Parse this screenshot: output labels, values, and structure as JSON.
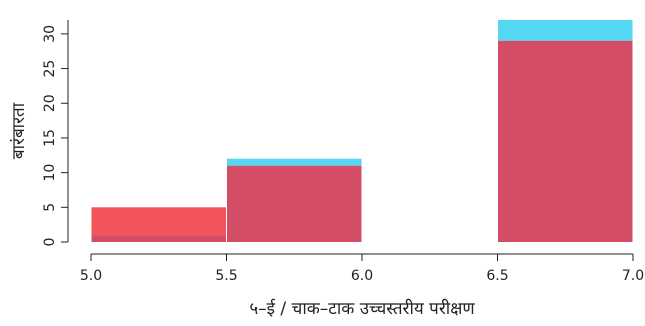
{
  "chart_data": {
    "type": "bar",
    "subtype": "overlapping-histogram",
    "xlabel": "५–ई / चाक–टाक उच्चस्तरीय परीक्षण",
    "ylabel": "बारंबारता",
    "xlim": [
      5.0,
      7.0
    ],
    "ylim": [
      0,
      32
    ],
    "x_ticks": [
      "5.0",
      "5.5",
      "6.0",
      "6.5",
      "7.0"
    ],
    "y_ticks": [
      "0",
      "5",
      "10",
      "15",
      "20",
      "25",
      "30"
    ],
    "bins": [
      [
        5.0,
        5.5
      ],
      [
        5.5,
        6.0
      ],
      [
        6.0,
        6.5
      ],
      [
        6.5,
        7.0
      ]
    ],
    "series": [
      {
        "color": "#55D6F2",
        "values": [
          1,
          12,
          0,
          32
        ]
      },
      {
        "color": "#F2545B",
        "values": [
          5,
          11,
          0,
          29
        ]
      }
    ],
    "overlap_color": "#D44D66",
    "grid": false
  }
}
